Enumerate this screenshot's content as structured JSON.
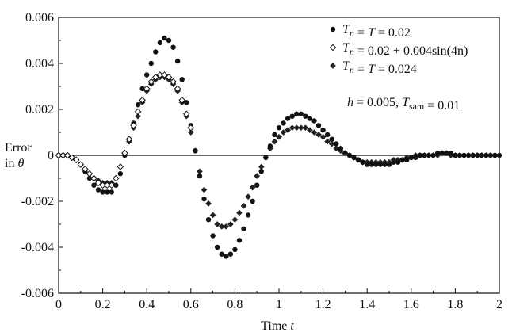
{
  "chart_data": {
    "type": "scatter",
    "xlabel": "Time t",
    "ylabel_lines": [
      "Error",
      "in θ"
    ],
    "xlim": [
      0,
      2
    ],
    "ylim": [
      -0.006,
      0.006
    ],
    "xticks": [
      0,
      0.2,
      0.4,
      0.6,
      0.8,
      1,
      1.2,
      1.4,
      1.6,
      1.8,
      2
    ],
    "xtick_labels": [
      "0",
      "0.2",
      "0.4",
      "0.6",
      "0.8",
      "1",
      "1.2",
      "1.4",
      "1.6",
      "1.8",
      "2"
    ],
    "yticks": [
      -0.006,
      -0.004,
      -0.002,
      0,
      0.002,
      0.004,
      0.006
    ],
    "ytick_labels": [
      "-0.006",
      "-0.004",
      "-0.002",
      "0",
      "0.002",
      "0.004",
      "0.006"
    ],
    "grid": false,
    "zero_line": true,
    "legend_position": "top-right",
    "annotation": "h = 0.005, T_sam = 0.01",
    "series": [
      {
        "name": "T_n = T = 0.02",
        "marker": "filled-circle",
        "x": [
          0.0,
          0.02,
          0.04,
          0.06,
          0.08,
          0.1,
          0.12,
          0.14,
          0.16,
          0.18,
          0.2,
          0.22,
          0.24,
          0.26,
          0.28,
          0.3,
          0.32,
          0.34,
          0.36,
          0.38,
          0.4,
          0.42,
          0.44,
          0.46,
          0.48,
          0.5,
          0.52,
          0.54,
          0.56,
          0.58,
          0.6,
          0.62,
          0.64,
          0.66,
          0.68,
          0.7,
          0.72,
          0.74,
          0.76,
          0.78,
          0.8,
          0.82,
          0.84,
          0.86,
          0.88,
          0.9,
          0.92,
          0.94,
          0.96,
          0.98,
          1.0,
          1.02,
          1.04,
          1.06,
          1.08,
          1.1,
          1.12,
          1.14,
          1.16,
          1.18,
          1.2,
          1.22,
          1.24,
          1.26,
          1.28,
          1.3,
          1.32,
          1.34,
          1.36,
          1.38,
          1.4,
          1.42,
          1.44,
          1.46,
          1.48,
          1.5,
          1.52,
          1.54,
          1.56,
          1.58,
          1.6,
          1.62,
          1.64,
          1.66,
          1.68,
          1.7,
          1.72,
          1.74,
          1.76,
          1.78,
          1.8,
          1.82,
          1.84,
          1.86,
          1.88,
          1.9,
          1.92,
          1.94,
          1.96,
          1.98,
          2.0
        ],
        "y": [
          0.0,
          0.0,
          0.0,
          -0.0001,
          -0.0002,
          -0.0004,
          -0.0007,
          -0.001,
          -0.0013,
          -0.0015,
          -0.0016,
          -0.0016,
          -0.0016,
          -0.0013,
          -0.0008,
          0.0,
          0.0007,
          0.0014,
          0.0022,
          0.0029,
          0.0035,
          0.004,
          0.0045,
          0.0049,
          0.0051,
          0.005,
          0.0047,
          0.0041,
          0.0033,
          0.0023,
          0.0013,
          0.0002,
          -0.0009,
          -0.0019,
          -0.0028,
          -0.0035,
          -0.004,
          -0.0043,
          -0.0044,
          -0.0043,
          -0.0041,
          -0.0037,
          -0.0032,
          -0.0026,
          -0.002,
          -0.0013,
          -0.0007,
          -0.0001,
          0.0004,
          0.0009,
          0.0012,
          0.0014,
          0.0016,
          0.0017,
          0.0018,
          0.0018,
          0.0017,
          0.0016,
          0.0015,
          0.0013,
          0.0011,
          0.0009,
          0.0007,
          0.0005,
          0.0003,
          0.0001,
          0.0,
          -0.0001,
          -0.0002,
          -0.0003,
          -0.0004,
          -0.0004,
          -0.0004,
          -0.0004,
          -0.0004,
          -0.0004,
          -0.0003,
          -0.0003,
          -0.0002,
          -0.0002,
          -0.0001,
          -0.0001,
          0.0,
          0.0,
          0.0,
          0.0,
          0.0001,
          0.0001,
          0.0001,
          0.0001,
          0.0,
          0.0,
          0.0,
          0.0,
          0.0,
          0.0,
          0.0,
          0.0,
          0.0,
          0.0,
          0.0
        ]
      },
      {
        "name": "T_n = 0.02 + 0.004sin(4n)",
        "marker": "open-diamond",
        "x": [
          0.0,
          0.02,
          0.04,
          0.06,
          0.08,
          0.1,
          0.12,
          0.14,
          0.16,
          0.18,
          0.2,
          0.22,
          0.24,
          0.26,
          0.28,
          0.3,
          0.32,
          0.34,
          0.36,
          0.38,
          0.4,
          0.42,
          0.44,
          0.46,
          0.48,
          0.5,
          0.52,
          0.54,
          0.56,
          0.58,
          0.6
        ],
        "y": [
          0.0,
          0.0,
          0.0,
          -0.0001,
          -0.0002,
          -0.0004,
          -0.0006,
          -0.0008,
          -0.001,
          -0.0012,
          -0.0013,
          -0.0013,
          -0.0013,
          -0.001,
          -0.0005,
          0.0001,
          0.0007,
          0.0013,
          0.0019,
          0.0024,
          0.0029,
          0.0032,
          0.0034,
          0.0035,
          0.0035,
          0.0034,
          0.0032,
          0.0029,
          0.0024,
          0.0018,
          0.0012
        ]
      },
      {
        "name": "T_n = T = 0.024",
        "marker": "filled-diamond",
        "x": [
          0.0,
          0.02,
          0.04,
          0.06,
          0.08,
          0.1,
          0.12,
          0.14,
          0.16,
          0.18,
          0.2,
          0.22,
          0.24,
          0.26,
          0.28,
          0.3,
          0.32,
          0.34,
          0.36,
          0.38,
          0.4,
          0.42,
          0.44,
          0.46,
          0.48,
          0.5,
          0.52,
          0.54,
          0.56,
          0.58,
          0.6,
          0.62,
          0.64,
          0.66,
          0.68,
          0.7,
          0.72,
          0.74,
          0.76,
          0.78,
          0.8,
          0.82,
          0.84,
          0.86,
          0.88,
          0.9,
          0.92,
          0.94,
          0.96,
          0.98,
          1.0,
          1.02,
          1.04,
          1.06,
          1.08,
          1.1,
          1.12,
          1.14,
          1.16,
          1.18,
          1.2,
          1.22,
          1.24,
          1.26,
          1.28,
          1.3,
          1.32,
          1.34,
          1.36,
          1.38,
          1.4,
          1.42,
          1.44,
          1.46,
          1.48,
          1.5,
          1.52,
          1.54,
          1.56,
          1.58,
          1.6,
          1.62,
          1.64,
          1.66,
          1.68,
          1.7,
          1.72,
          1.74,
          1.76,
          1.78,
          1.8,
          1.82,
          1.84,
          1.86,
          1.88,
          1.9,
          1.92,
          1.94,
          1.96,
          1.98,
          2.0
        ],
        "y": [
          0.0,
          0.0,
          0.0,
          -0.0001,
          -0.0002,
          -0.0004,
          -0.0006,
          -0.0008,
          -0.001,
          -0.0011,
          -0.0012,
          -0.0012,
          -0.0012,
          -0.001,
          -0.0005,
          0.0001,
          0.0006,
          0.0012,
          0.0017,
          0.0023,
          0.0028,
          0.0031,
          0.0033,
          0.0034,
          0.0034,
          0.0033,
          0.0031,
          0.0028,
          0.0023,
          0.0017,
          0.001,
          0.0002,
          -0.0007,
          -0.0015,
          -0.0021,
          -0.0026,
          -0.003,
          -0.0031,
          -0.0031,
          -0.003,
          -0.0028,
          -0.0025,
          -0.0022,
          -0.0018,
          -0.0014,
          -0.0009,
          -0.0005,
          -0.0001,
          0.0003,
          0.0006,
          0.0008,
          0.001,
          0.0011,
          0.0012,
          0.0012,
          0.0012,
          0.0012,
          0.0011,
          0.001,
          0.0009,
          0.0008,
          0.0006,
          0.0005,
          0.0003,
          0.0002,
          0.0001,
          0.0,
          -0.0001,
          -0.0002,
          -0.0003,
          -0.0003,
          -0.0003,
          -0.0003,
          -0.0003,
          -0.0003,
          -0.0003,
          -0.0002,
          -0.0002,
          -0.0002,
          -0.0001,
          -0.0001,
          0.0,
          0.0,
          0.0,
          0.0,
          0.0,
          0.0,
          0.0001,
          0.0001,
          0.0,
          0.0,
          0.0,
          0.0,
          0.0,
          0.0,
          0.0,
          0.0,
          0.0,
          0.0,
          0.0,
          0.0
        ]
      }
    ]
  }
}
